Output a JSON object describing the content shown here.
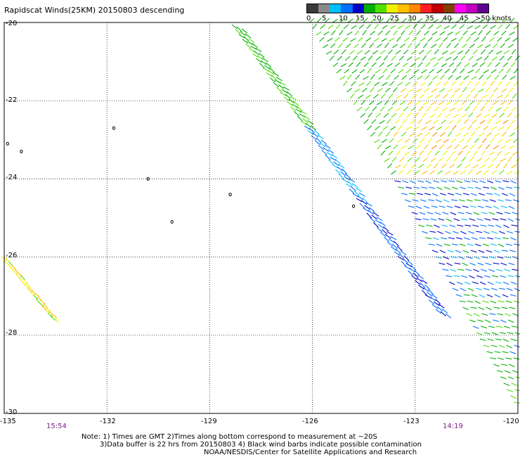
{
  "title": "Rapidscat Winds(25KM) 20150803 descending",
  "legend": {
    "colors": [
      "#3a3a3a",
      "#8a8a8a",
      "#00c0ff",
      "#0070ff",
      "#0000cc",
      "#00b000",
      "#50e000",
      "#f0f000",
      "#ffc000",
      "#ff8800",
      "#ff2020",
      "#c00000",
      "#804000",
      "#ff00ff",
      "#c000c0",
      "#600090"
    ],
    "labels": [
      "0",
      "5",
      "10",
      "15",
      "20",
      "25",
      "30",
      "35",
      "40",
      "45",
      ">50 knots"
    ]
  },
  "map": {
    "lon_labels": [
      "-135",
      "-132",
      "-129",
      "-126",
      "-123",
      "-120"
    ],
    "lat_labels": [
      "-20",
      "-22",
      "-24",
      "-26",
      "-28",
      "-30"
    ],
    "times": [
      {
        "label": "15:54",
        "lon": -133.6
      },
      {
        "label": "14:19",
        "lon": -121.4
      }
    ]
  },
  "notes": {
    "line1": "Note: 1) Times are GMT 2)Times along bottom correspond to measurement at ~20S",
    "line2": "3)Data buffer is 22 hrs from 20150803 4) Black wind barbs indicate possible contamination",
    "line3": "NOAA/NESDIS/Center for Satellite Applications and Research"
  },
  "islands": [
    {
      "name": "",
      "lon": -131.8,
      "lat": -22.7
    },
    {
      "name": "",
      "lon": -134.9,
      "lat": -23.1
    },
    {
      "name": "",
      "lon": -134.5,
      "lat": -23.3
    },
    {
      "name": "",
      "lon": -130.8,
      "lat": -24.0
    },
    {
      "name": "",
      "lon": -128.4,
      "lat": -24.4
    },
    {
      "name": "",
      "lon": -130.1,
      "lat": -25.1
    },
    {
      "name": "",
      "lon": -124.8,
      "lat": -24.7
    }
  ]
}
